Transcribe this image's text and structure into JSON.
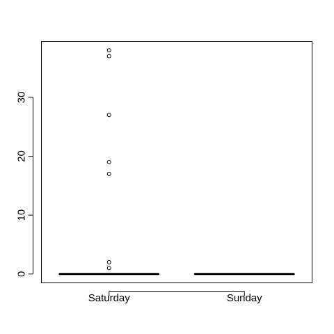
{
  "chart_data": {
    "type": "boxplot",
    "title": "",
    "xlabel": "",
    "ylabel": "",
    "categories": [
      "Saturday",
      "Sunday"
    ],
    "ylim": [
      -1.5,
      39.5
    ],
    "yticks": [
      0,
      10,
      20,
      30
    ],
    "ytick_labels": [
      "0",
      "10",
      "20",
      "30"
    ],
    "grid": false,
    "boxes": [
      {
        "name": "Saturday",
        "min": 0,
        "q1": 0,
        "median": 0,
        "q3": 0,
        "max": 0,
        "outliers": [
          1,
          2,
          17,
          19,
          27,
          37,
          38
        ]
      },
      {
        "name": "Sunday",
        "min": 0,
        "q1": 0,
        "median": 0,
        "q3": 0,
        "max": 0,
        "outliers": []
      }
    ]
  }
}
